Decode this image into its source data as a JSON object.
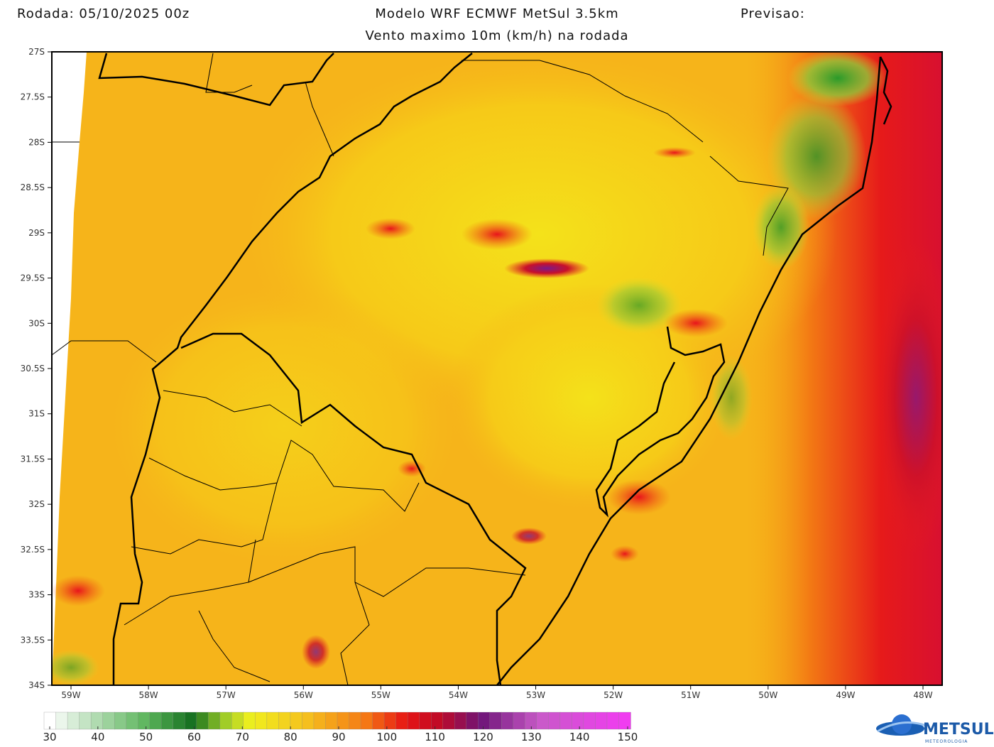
{
  "header": {
    "run": "Rodada: 05/10/2025 00z",
    "model": "Modelo WRF ECMWF MetSul 3.5km",
    "forecast": "Previsao:",
    "subtitle": "Vento maximo 10m (km/h) na rodada"
  },
  "map": {
    "lat_labels": [
      "27S",
      "27.5S",
      "28S",
      "28.5S",
      "29S",
      "29.5S",
      "30S",
      "30.5S",
      "31S",
      "31.5S",
      "32S",
      "32.5S",
      "33S",
      "33.5S",
      "34S"
    ],
    "lon_labels": [
      "59W",
      "58W",
      "57W",
      "56W",
      "55W",
      "54W",
      "53W",
      "52W",
      "51W",
      "50W",
      "49W",
      "48W"
    ]
  },
  "colorbar": {
    "ticks": [
      30,
      40,
      50,
      60,
      70,
      80,
      90,
      100,
      110,
      120,
      130,
      140,
      150
    ]
  },
  "logo": {
    "name": "METSUL",
    "tagline": "METEOROLOGIA"
  }
}
